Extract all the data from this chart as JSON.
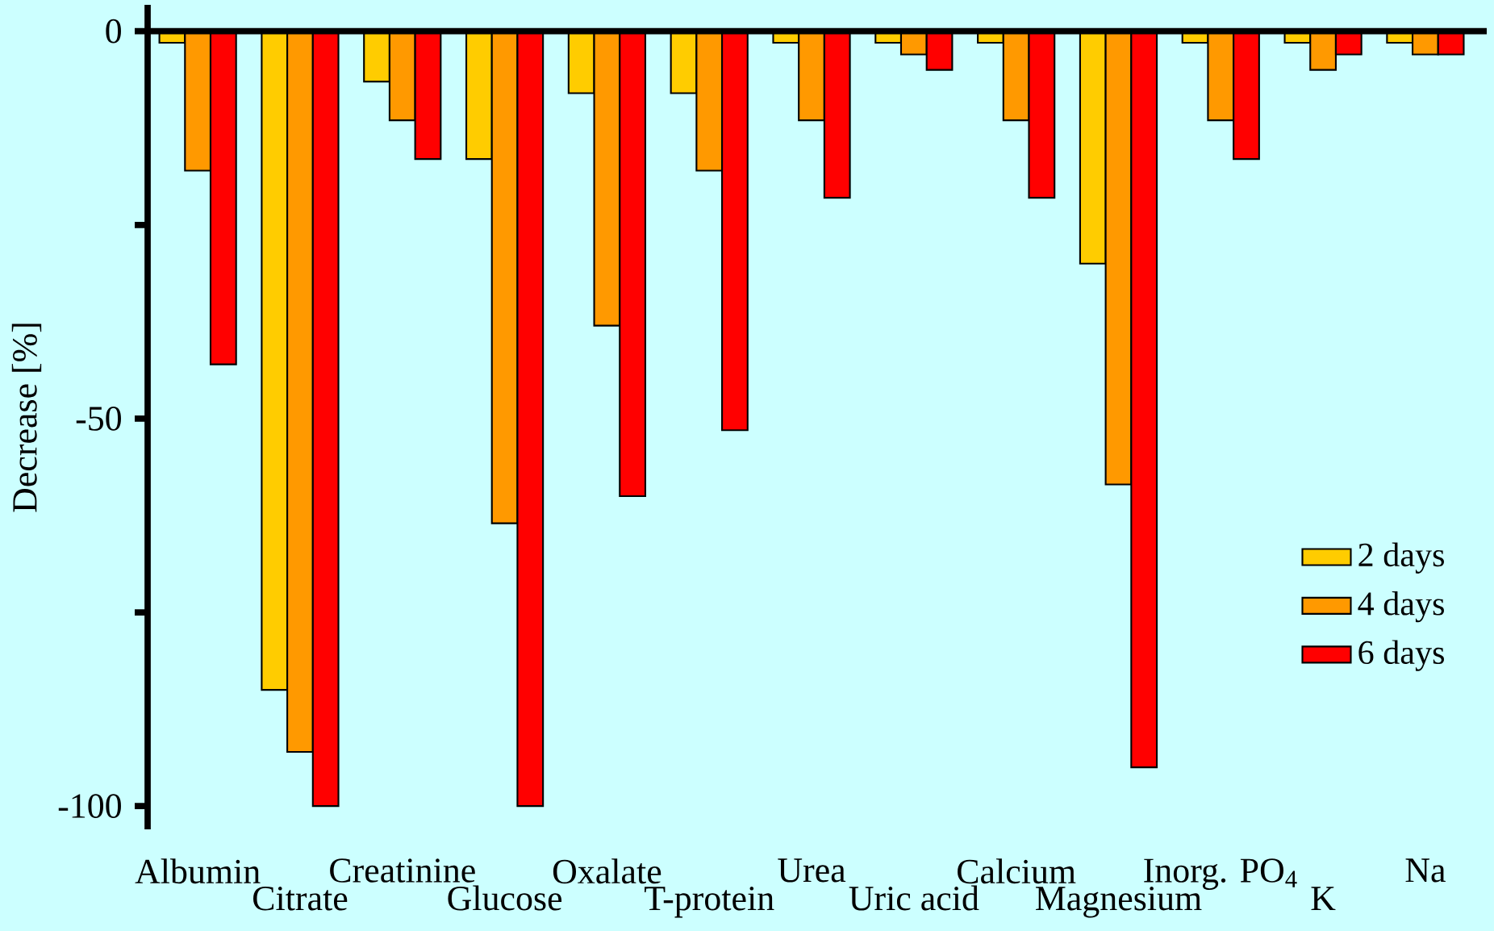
{
  "chart_data": {
    "type": "bar",
    "ylabel": "Decrease [%]",
    "categories": [
      "Albumin",
      "Citrate",
      "Creatinine",
      "Glucose",
      "Oxalate",
      "T-protein",
      "Urea",
      "Uric acid",
      "Calcium",
      "Magnesium",
      "Inorg. PO$_{4}$",
      "K",
      "Na"
    ],
    "series": [
      {
        "name": "2 days",
        "color": "#ffcc00",
        "values": [
          -1.5,
          -85,
          -6.5,
          -16.5,
          -8,
          -8,
          -1.5,
          -1.5,
          -1.5,
          -30,
          -1.5,
          -1.5,
          -1.5
        ]
      },
      {
        "name": "4 days",
        "color": "#ff9900",
        "values": [
          -18,
          -93,
          -11.5,
          -63.5,
          -38,
          -18,
          -11.5,
          -3,
          -11.5,
          -58.5,
          -11.5,
          -5,
          -3
        ]
      },
      {
        "name": "6 days",
        "color": "#ff0000",
        "values": [
          -43,
          -100,
          -16.5,
          -100,
          -60,
          -51.5,
          -21.5,
          -5,
          -21.5,
          -95,
          -16.5,
          -3,
          -3
        ]
      }
    ],
    "ylim": [
      -103,
      3.4
    ],
    "yticks": [
      0,
      {
        "value": -25,
        "label": null
      },
      -50,
      {
        "value": -75,
        "label": null
      },
      -100
    ],
    "ref_lines": [
      {
        "axis": "y",
        "value": 0
      }
    ],
    "legend": "right",
    "grid": false
  }
}
